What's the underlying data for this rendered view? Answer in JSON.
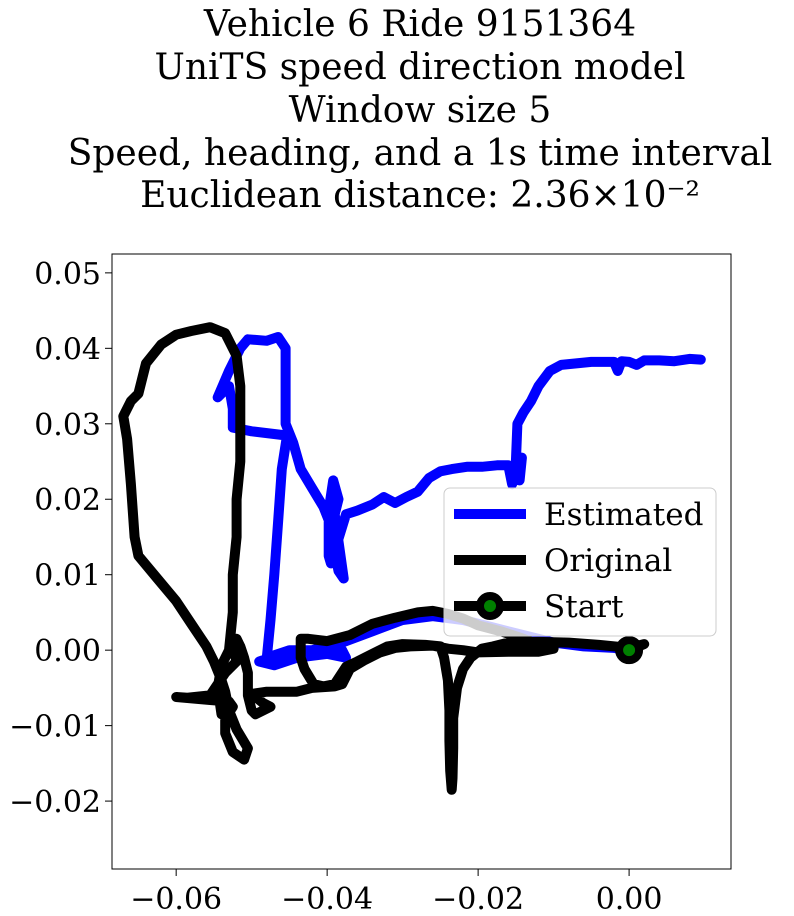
{
  "chart_data": {
    "type": "line",
    "title_lines": [
      "Vehicle 6 Ride 9151364",
      "UniTS speed direction model",
      "Window size 5",
      "Speed, heading, and a 1s time interval",
      "Euclidean distance: 2.36×10⁻²"
    ],
    "xlabel": "",
    "ylabel": "",
    "xlim": [
      -0.0685,
      0.0135
    ],
    "ylim": [
      -0.029,
      0.0525
    ],
    "xticks": [
      -0.06,
      -0.04,
      -0.02,
      0.0
    ],
    "xtick_labels": [
      "−0.06",
      "−0.04",
      "−0.02",
      "0.00"
    ],
    "yticks": [
      -0.02,
      -0.01,
      0.0,
      0.01,
      0.02,
      0.03,
      0.04,
      0.05
    ],
    "ytick_labels": [
      "−0.02",
      "−0.01",
      "0.00",
      "0.01",
      "0.02",
      "0.03",
      "0.04",
      "0.05"
    ],
    "grid": false,
    "legend_position": "center-right",
    "legend": [
      "Estimated",
      "Original",
      "Start"
    ],
    "series": [
      {
        "name": "Estimated",
        "color": "#0000ff",
        "points": [
          [
            0.0,
            0.0
          ],
          [
            -0.002,
            0.0003
          ],
          [
            -0.006,
            0.0005
          ],
          [
            -0.01,
            0.001
          ],
          [
            -0.014,
            0.002
          ],
          [
            -0.018,
            0.003
          ],
          [
            -0.022,
            0.004
          ],
          [
            -0.026,
            0.0045
          ],
          [
            -0.03,
            0.004
          ],
          [
            -0.034,
            0.0025
          ],
          [
            -0.038,
            0.001
          ],
          [
            -0.042,
            0.0
          ],
          [
            -0.046,
            -0.0005
          ],
          [
            -0.049,
            -0.0015
          ],
          [
            -0.047,
            -0.002
          ],
          [
            -0.044,
            -0.001
          ],
          [
            -0.04,
            -0.0005
          ],
          [
            -0.0375,
            -0.001
          ],
          [
            -0.038,
            0.0
          ],
          [
            -0.045,
            0.0
          ],
          [
            -0.048,
            -0.001
          ],
          [
            -0.0475,
            0.004
          ],
          [
            -0.047,
            0.01
          ],
          [
            -0.0465,
            0.017
          ],
          [
            -0.046,
            0.024
          ],
          [
            -0.0453,
            0.0285
          ],
          [
            -0.0458,
            0.0285
          ],
          [
            -0.05,
            0.029
          ],
          [
            -0.0525,
            0.0295
          ],
          [
            -0.0525,
            0.032
          ],
          [
            -0.053,
            0.035
          ],
          [
            -0.0545,
            0.0335
          ],
          [
            -0.053,
            0.037
          ],
          [
            -0.0515,
            0.04
          ],
          [
            -0.0505,
            0.0412
          ],
          [
            -0.048,
            0.041
          ],
          [
            -0.0465,
            0.0415
          ],
          [
            -0.0455,
            0.04
          ],
          [
            -0.0455,
            0.035
          ],
          [
            -0.0455,
            0.03
          ],
          [
            -0.0445,
            0.0275
          ],
          [
            -0.0435,
            0.024
          ],
          [
            -0.042,
            0.0215
          ],
          [
            -0.0405,
            0.019
          ],
          [
            -0.0395,
            0.0165
          ],
          [
            -0.039,
            0.013
          ],
          [
            -0.0385,
            0.0105
          ],
          [
            -0.0378,
            0.0095
          ],
          [
            -0.0383,
            0.013
          ],
          [
            -0.039,
            0.018
          ],
          [
            -0.0385,
            0.02
          ],
          [
            -0.0392,
            0.0225
          ],
          [
            -0.0398,
            0.0185
          ],
          [
            -0.0398,
            0.016
          ],
          [
            -0.0398,
            0.0125
          ],
          [
            -0.0395,
            0.0115
          ],
          [
            -0.0375,
            0.018
          ],
          [
            -0.036,
            0.0185
          ],
          [
            -0.034,
            0.0193
          ],
          [
            -0.0325,
            0.0203
          ],
          [
            -0.031,
            0.0195
          ],
          [
            -0.0295,
            0.0203
          ],
          [
            -0.028,
            0.021
          ],
          [
            -0.0265,
            0.0228
          ],
          [
            -0.025,
            0.0237
          ],
          [
            -0.0235,
            0.024
          ],
          [
            -0.0215,
            0.0243
          ],
          [
            -0.0195,
            0.0243
          ],
          [
            -0.0175,
            0.0245
          ],
          [
            -0.016,
            0.0245
          ],
          [
            -0.0155,
            0.022
          ],
          [
            -0.0145,
            0.0245
          ],
          [
            -0.0142,
            0.0255
          ],
          [
            -0.0145,
            0.0225
          ],
          [
            -0.015,
            0.025
          ],
          [
            -0.0148,
            0.03
          ],
          [
            -0.014,
            0.0315
          ],
          [
            -0.013,
            0.033
          ],
          [
            -0.012,
            0.035
          ],
          [
            -0.0105,
            0.037
          ],
          [
            -0.009,
            0.0378
          ],
          [
            -0.007,
            0.038
          ],
          [
            -0.005,
            0.0382
          ],
          [
            -0.002,
            0.0382
          ],
          [
            -0.0015,
            0.037
          ],
          [
            -0.001,
            0.0383
          ],
          [
            0.0,
            0.0382
          ],
          [
            0.001,
            0.0378
          ],
          [
            0.002,
            0.0384
          ],
          [
            0.004,
            0.0384
          ],
          [
            0.006,
            0.0383
          ],
          [
            0.008,
            0.0386
          ],
          [
            0.0095,
            0.0385
          ]
        ]
      },
      {
        "name": "Original",
        "color": "#000000",
        "points": [
          [
            0.0,
            0.0
          ],
          [
            0.002,
            0.0008
          ],
          [
            0.0,
            0.0003
          ],
          [
            -0.004,
            0.0007
          ],
          [
            -0.008,
            0.001
          ],
          [
            -0.012,
            0.0011
          ],
          [
            -0.016,
            0.001
          ],
          [
            -0.018,
            0.0005
          ],
          [
            -0.0195,
            0.0002
          ],
          [
            -0.021,
            -0.001
          ],
          [
            -0.022,
            -0.0025
          ],
          [
            -0.0228,
            -0.005
          ],
          [
            -0.0233,
            -0.009
          ],
          [
            -0.0233,
            -0.013
          ],
          [
            -0.0234,
            -0.017
          ],
          [
            -0.0235,
            -0.0185
          ],
          [
            -0.0237,
            -0.016
          ],
          [
            -0.0238,
            -0.012
          ],
          [
            -0.0238,
            -0.008
          ],
          [
            -0.024,
            -0.004
          ],
          [
            -0.0245,
            -0.001
          ],
          [
            -0.025,
            0.0005
          ],
          [
            -0.027,
            0.0007
          ],
          [
            -0.03,
            0.0008
          ],
          [
            -0.032,
            0.0005
          ],
          [
            -0.034,
            -0.0005
          ],
          [
            -0.036,
            -0.0015
          ],
          [
            -0.0375,
            -0.0022
          ],
          [
            -0.039,
            -0.0045
          ],
          [
            -0.0405,
            -0.0048
          ],
          [
            -0.0418,
            -0.0045
          ],
          [
            -0.043,
            -0.0025
          ],
          [
            -0.0435,
            -0.001
          ],
          [
            -0.0435,
            0.0015
          ],
          [
            -0.0425,
            0.0015
          ],
          [
            -0.04,
            0.0012
          ],
          [
            -0.037,
            0.002
          ],
          [
            -0.034,
            0.0035
          ],
          [
            -0.031,
            0.0043
          ],
          [
            -0.028,
            0.005
          ],
          [
            -0.026,
            0.0052
          ],
          [
            -0.024,
            0.0048
          ],
          [
            -0.022,
            0.0042
          ],
          [
            -0.02,
            0.0033
          ],
          [
            -0.017,
            0.0025
          ],
          [
            -0.014,
            0.0015
          ],
          [
            -0.012,
            0.0007
          ],
          [
            -0.01,
            0.0002
          ],
          [
            -0.012,
            -0.0002
          ],
          [
            -0.016,
            -0.0002
          ],
          [
            -0.02,
            -0.0003
          ],
          [
            -0.022,
            0.0
          ],
          [
            -0.024,
            0.0002
          ],
          [
            -0.026,
            0.0006
          ],
          [
            -0.029,
            0.0005
          ],
          [
            -0.031,
            0.0003
          ],
          [
            -0.033,
            -0.0003
          ],
          [
            -0.035,
            -0.0013
          ],
          [
            -0.037,
            -0.0025
          ],
          [
            -0.038,
            -0.0045
          ],
          [
            -0.039,
            -0.0048
          ],
          [
            -0.042,
            -0.005
          ],
          [
            -0.044,
            -0.0055
          ],
          [
            -0.046,
            -0.0055
          ],
          [
            -0.048,
            -0.0055
          ],
          [
            -0.05,
            -0.0058
          ],
          [
            -0.0485,
            -0.007
          ],
          [
            -0.0475,
            -0.0075
          ],
          [
            -0.0495,
            -0.0085
          ],
          [
            -0.05,
            -0.008
          ],
          [
            -0.0505,
            -0.006
          ],
          [
            -0.0505,
            -0.003
          ],
          [
            -0.051,
            -0.001
          ],
          [
            -0.0515,
            0.0005
          ],
          [
            -0.052,
            0.0015
          ],
          [
            -0.0525,
            0.0005
          ],
          [
            -0.052,
            -0.0015
          ],
          [
            -0.0535,
            -0.003
          ],
          [
            -0.0545,
            -0.0045
          ],
          [
            -0.0555,
            -0.006
          ],
          [
            -0.0585,
            -0.0063
          ],
          [
            -0.06,
            -0.0062
          ],
          [
            -0.0555,
            -0.0066
          ],
          [
            -0.053,
            -0.0068
          ],
          [
            -0.0525,
            -0.0075
          ],
          [
            -0.0535,
            -0.009
          ],
          [
            -0.0535,
            -0.011
          ],
          [
            -0.0525,
            -0.0135
          ],
          [
            -0.051,
            -0.0145
          ],
          [
            -0.0505,
            -0.013
          ],
          [
            -0.052,
            -0.0105
          ],
          [
            -0.053,
            -0.008
          ],
          [
            -0.0535,
            -0.0055
          ],
          [
            -0.054,
            -0.004
          ],
          [
            -0.055,
            -0.0015
          ],
          [
            -0.056,
            0.0005
          ],
          [
            -0.058,
            0.0035
          ],
          [
            -0.06,
            0.0065
          ],
          [
            -0.0625,
            0.0095
          ],
          [
            -0.065,
            0.0125
          ],
          [
            -0.0655,
            0.015
          ],
          [
            -0.066,
            0.022
          ],
          [
            -0.0665,
            0.028
          ],
          [
            -0.067,
            0.031
          ],
          [
            -0.066,
            0.033
          ],
          [
            -0.065,
            0.034
          ],
          [
            -0.0645,
            0.036
          ],
          [
            -0.064,
            0.038
          ],
          [
            -0.062,
            0.0405
          ],
          [
            -0.06,
            0.0418
          ],
          [
            -0.058,
            0.0423
          ],
          [
            -0.0555,
            0.0428
          ],
          [
            -0.0535,
            0.042
          ],
          [
            -0.052,
            0.039
          ],
          [
            -0.0515,
            0.035
          ],
          [
            -0.0515,
            0.03
          ],
          [
            -0.0515,
            0.025
          ],
          [
            -0.052,
            0.02
          ],
          [
            -0.052,
            0.015
          ],
          [
            -0.0525,
            0.01
          ],
          [
            -0.0525,
            0.005
          ],
          [
            -0.053,
            0.0
          ],
          [
            -0.054,
            -0.002
          ],
          [
            -0.0545,
            -0.005
          ],
          [
            -0.054,
            -0.0085
          ]
        ]
      }
    ],
    "start_point": [
      0.0,
      0.0
    ],
    "start_color": "#008000"
  }
}
